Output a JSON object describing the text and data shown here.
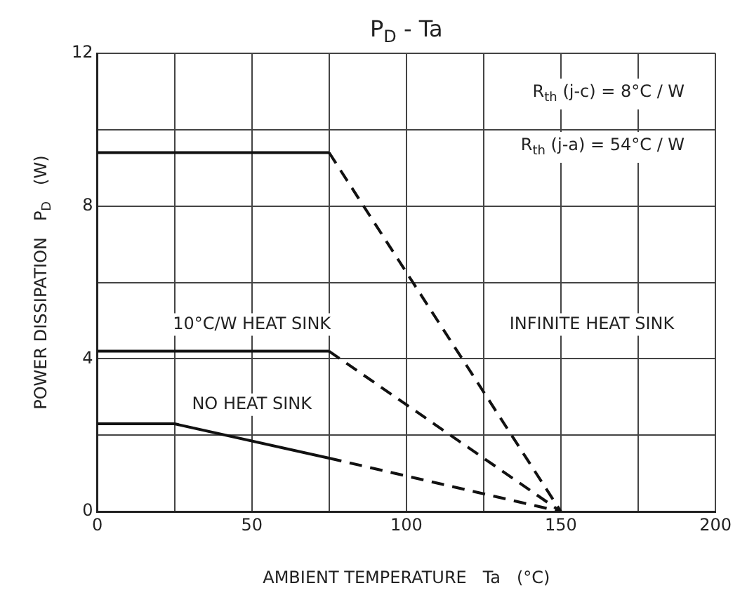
{
  "chart_data": {
    "type": "line",
    "title": "P$_{D}$ - Ta",
    "xlabel": "AMBIENT TEMPERATURE   Ta   (°C)",
    "ylabel": "POWER DISSIPATION   P$_{D}$   (W)",
    "series": [
      {
        "color": "#111111",
        "line_style": "solid",
        "x": [
          0,
          75
        ],
        "values": [
          9.4,
          9.4
        ]
      },
      {
        "color": "#111111",
        "line_style": "dashed",
        "x": [
          75,
          150
        ],
        "values": [
          9.4,
          0
        ]
      },
      {
        "color": "#111111",
        "line_style": "solid",
        "x": [
          0,
          75
        ],
        "values": [
          4.2,
          4.2
        ]
      },
      {
        "color": "#111111",
        "line_style": "dashed",
        "x": [
          75,
          150
        ],
        "values": [
          4.2,
          0
        ]
      },
      {
        "color": "#111111",
        "line_style": "solid",
        "x": [
          0,
          25,
          75
        ],
        "values": [
          2.3,
          2.3,
          1.4
        ]
      },
      {
        "color": "#111111",
        "line_style": "dashed",
        "x": [
          75,
          150
        ],
        "values": [
          1.4,
          0
        ]
      }
    ],
    "annotations": [
      "R$_{th}$ (j-c) = 8°C / W",
      "R$_{th}$ (j-a) = 54°C / W",
      "10°C/W HEAT SINK",
      "INFINITE HEAT SINK",
      "NO HEAT SINK"
    ],
    "xlim": [
      0,
      200
    ],
    "xticks": [
      0,
      {
        "value": 25,
        "label": null
      },
      50,
      {
        "value": 75,
        "label": null
      },
      100,
      {
        "value": 125,
        "label": null
      },
      150,
      {
        "value": 175,
        "label": null
      },
      200
    ],
    "ylim": [
      0,
      12
    ],
    "yticks": [
      0,
      {
        "value": 2,
        "label": null
      },
      4,
      {
        "value": 6,
        "label": null
      },
      8,
      {
        "value": 10,
        "label": null
      },
      12
    ],
    "grid": true,
    "legend": false,
    "marker": "none"
  }
}
